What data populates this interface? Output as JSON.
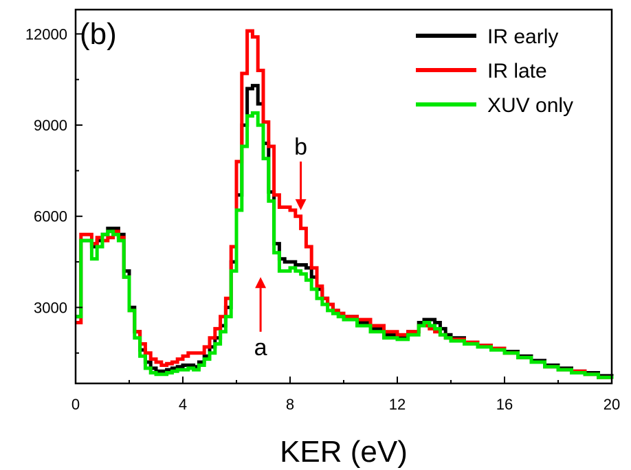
{
  "chart_data": {
    "type": "line",
    "panel_label": "(b)",
    "xlabel": "KER (eV)",
    "ylabel": "",
    "xlim": [
      0,
      20
    ],
    "ylim": [
      500,
      12800
    ],
    "x_ticks": [
      0,
      4,
      8,
      12,
      16,
      20
    ],
    "y_ticks": [
      3000,
      6000,
      9000,
      12000
    ],
    "legend_position": "top-right",
    "series": [
      {
        "name": "IR early",
        "color": "#000000",
        "x": [
          0,
          0.2,
          0.4,
          0.6,
          0.8,
          1.0,
          1.2,
          1.4,
          1.6,
          1.8,
          2.0,
          2.2,
          2.4,
          2.6,
          2.8,
          3.0,
          3.2,
          3.4,
          3.6,
          3.8,
          4.0,
          4.2,
          4.4,
          4.6,
          4.8,
          5.0,
          5.2,
          5.4,
          5.6,
          5.8,
          6.0,
          6.2,
          6.4,
          6.6,
          6.8,
          7.0,
          7.2,
          7.4,
          7.6,
          7.8,
          8.0,
          8.2,
          8.4,
          8.6,
          8.8,
          9.0,
          9.2,
          9.4,
          9.6,
          9.8,
          10.0,
          10.5,
          11.0,
          11.5,
          12.0,
          12.4,
          12.8,
          13.0,
          13.2,
          13.4,
          13.6,
          13.8,
          14.0,
          14.5,
          15.0,
          15.5,
          16.0,
          16.5,
          17.0,
          17.5,
          18.0,
          18.5,
          19.0,
          19.5,
          20.0
        ],
        "y": [
          2700,
          5200,
          5200,
          5000,
          5200,
          5400,
          5600,
          5600,
          5400,
          4200,
          3000,
          2200,
          1600,
          1200,
          1000,
          900,
          900,
          950,
          1000,
          1050,
          1100,
          1100,
          1050,
          1200,
          1400,
          1700,
          2000,
          2400,
          3000,
          4500,
          6700,
          9000,
          10200,
          10300,
          9700,
          8400,
          6800,
          5100,
          4600,
          4500,
          4500,
          4400,
          4400,
          4300,
          4000,
          3600,
          3300,
          3100,
          2900,
          2800,
          2700,
          2500,
          2300,
          2100,
          2000,
          2200,
          2500,
          2600,
          2600,
          2500,
          2300,
          2100,
          2000,
          1850,
          1750,
          1650,
          1550,
          1400,
          1250,
          1100,
          1000,
          900,
          850,
          750,
          650
        ]
      },
      {
        "name": "IR late",
        "color": "#ff0000",
        "x": [
          0,
          0.2,
          0.4,
          0.6,
          0.8,
          1.0,
          1.2,
          1.4,
          1.6,
          1.8,
          2.0,
          2.2,
          2.4,
          2.6,
          2.8,
          3.0,
          3.2,
          3.4,
          3.6,
          3.8,
          4.0,
          4.2,
          4.4,
          4.6,
          4.8,
          5.0,
          5.2,
          5.4,
          5.6,
          5.8,
          6.0,
          6.2,
          6.4,
          6.6,
          6.8,
          7.0,
          7.2,
          7.4,
          7.6,
          7.8,
          8.0,
          8.2,
          8.4,
          8.6,
          8.8,
          9.0,
          9.2,
          9.4,
          9.6,
          9.8,
          10.0,
          10.5,
          11.0,
          11.5,
          12.0,
          12.4,
          12.8,
          13.0,
          13.2,
          13.4,
          13.6,
          13.8,
          14.0,
          14.5,
          15.0,
          15.5,
          16.0,
          16.5,
          17.0,
          17.5,
          18.0,
          18.5,
          19.0,
          19.5,
          20.0
        ],
        "y": [
          2500,
          5400,
          5400,
          5100,
          5300,
          5200,
          5300,
          5500,
          5300,
          4000,
          2900,
          2200,
          1800,
          1500,
          1300,
          1200,
          1100,
          1150,
          1200,
          1300,
          1400,
          1500,
          1500,
          1500,
          1700,
          2000,
          2300,
          2700,
          3300,
          5000,
          7800,
          10700,
          12100,
          11900,
          10800,
          9100,
          8300,
          6700,
          6300,
          6300,
          6200,
          6000,
          5600,
          5000,
          4300,
          3700,
          3300,
          3100,
          2900,
          2800,
          2700,
          2600,
          2400,
          2200,
          2100,
          2200,
          2400,
          2400,
          2300,
          2200,
          2100,
          2000,
          1950,
          1850,
          1750,
          1650,
          1500,
          1350,
          1200,
          1050,
          950,
          900,
          800,
          700,
          650
        ]
      },
      {
        "name": "XUV only",
        "color": "#00e600",
        "x": [
          0,
          0.2,
          0.4,
          0.6,
          0.8,
          1.0,
          1.2,
          1.4,
          1.6,
          1.8,
          2.0,
          2.2,
          2.4,
          2.6,
          2.8,
          3.0,
          3.2,
          3.4,
          3.6,
          3.8,
          4.0,
          4.2,
          4.4,
          4.6,
          4.8,
          5.0,
          5.2,
          5.4,
          5.6,
          5.8,
          6.0,
          6.2,
          6.4,
          6.6,
          6.8,
          7.0,
          7.2,
          7.4,
          7.6,
          7.8,
          8.0,
          8.2,
          8.4,
          8.6,
          8.8,
          9.0,
          9.2,
          9.4,
          9.6,
          9.8,
          10.0,
          10.5,
          11.0,
          11.5,
          12.0,
          12.4,
          12.8,
          13.0,
          13.2,
          13.4,
          13.6,
          13.8,
          14.0,
          14.5,
          15.0,
          15.5,
          16.0,
          16.5,
          17.0,
          17.5,
          18.0,
          18.5,
          19.0,
          19.5,
          20.0
        ],
        "y": [
          2700,
          5200,
          5200,
          4600,
          5000,
          5400,
          5500,
          5400,
          5200,
          4000,
          2900,
          2000,
          1400,
          1000,
          850,
          800,
          800,
          850,
          900,
          950,
          950,
          1000,
          950,
          1100,
          1300,
          1500,
          1800,
          2200,
          2700,
          4200,
          6200,
          8300,
          9300,
          9400,
          9000,
          7900,
          6500,
          4800,
          4200,
          4200,
          4300,
          4200,
          4100,
          3900,
          3600,
          3300,
          3100,
          2900,
          2800,
          2700,
          2600,
          2400,
          2200,
          2000,
          1950,
          2100,
          2400,
          2500,
          2400,
          2300,
          2100,
          2000,
          1900,
          1800,
          1700,
          1600,
          1500,
          1350,
          1200,
          1050,
          950,
          850,
          800,
          700,
          650
        ]
      }
    ],
    "annotations": [
      {
        "text": "a",
        "arrow_x": 6.9,
        "arrow_from_y": 2200,
        "arrow_to_y": 4000,
        "direction": "up",
        "color": "#ff0000"
      },
      {
        "text": "b",
        "arrow_x": 8.4,
        "arrow_from_y": 7800,
        "arrow_to_y": 6200,
        "direction": "down",
        "color": "#ff0000"
      }
    ]
  }
}
